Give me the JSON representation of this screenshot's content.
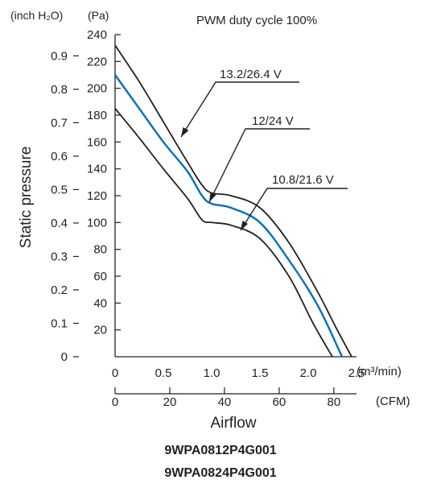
{
  "chart_data": {
    "type": "line",
    "title": "PWM duty cycle 100%",
    "ylabel": "Static pressure",
    "xlabel": "Airflow",
    "y_unit_pa": "(Pa)",
    "y_unit_inch": "(inch H₂O)",
    "x_unit_m3": "(m³/min)",
    "x_unit_cfm": "(CFM)",
    "ylim_pa": [
      0,
      240
    ],
    "xlim_m3": [
      0,
      2.5
    ],
    "y_ticks_pa": [
      20,
      40,
      60,
      80,
      100,
      120,
      140,
      160,
      180,
      200,
      220,
      240
    ],
    "y_ticks_inch": [
      "0",
      "0.1",
      "0.2",
      "0.3",
      "0.4",
      "0.5",
      "0.6",
      "0.7",
      "0.8",
      "0.9"
    ],
    "x_ticks_m3": [
      "0",
      "0.5",
      "1.0",
      "1.5",
      "2.0",
      "2.5"
    ],
    "x_ticks_cfm": [
      "0",
      "20",
      "40",
      "60",
      "80"
    ],
    "grid": false,
    "series": [
      {
        "name": "13.2/26.4 V",
        "color": "#231f20",
        "x": [
          0,
          0.25,
          0.5,
          0.75,
          0.9,
          1.0,
          1.2,
          1.5,
          1.8,
          2.1,
          2.3,
          2.45
        ],
        "y": [
          232,
          205,
          175,
          145,
          128,
          122,
          120,
          111,
          85,
          48,
          20,
          0
        ]
      },
      {
        "name": "12/24 V",
        "color": "#0070bc",
        "x": [
          0,
          0.25,
          0.5,
          0.75,
          0.9,
          1.0,
          1.2,
          1.5,
          1.8,
          2.1,
          2.35
        ],
        "y": [
          210,
          185,
          160,
          138,
          120,
          114,
          111,
          100,
          72,
          38,
          0
        ]
      },
      {
        "name": "10.8/21.6 V",
        "color": "#231f20",
        "x": [
          0,
          0.25,
          0.5,
          0.75,
          0.9,
          1.0,
          1.2,
          1.5,
          1.8,
          2.05,
          2.25
        ],
        "y": [
          185,
          163,
          140,
          118,
          102,
          100,
          98,
          88,
          60,
          25,
          0
        ]
      }
    ]
  },
  "footer": {
    "models": [
      "9WPA0812P4G001",
      "9WPA0824P4G001"
    ]
  }
}
